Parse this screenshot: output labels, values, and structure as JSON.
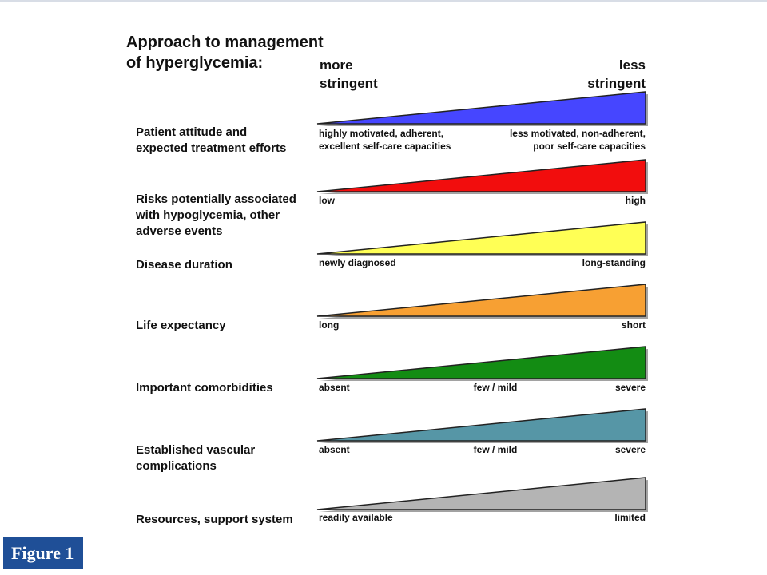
{
  "title_line1": "Approach to management",
  "title_line2": "of hyperglycemia:",
  "more_line1": "more",
  "more_line2": "stringent",
  "less_line1": "less",
  "less_line2": "stringent",
  "rows": [
    {
      "label_lines": [
        "Patient attitude and",
        "expected treatment efforts"
      ],
      "color": "#4646ff",
      "left_lines": [
        "highly motivated, adherent,",
        "excellent self-care capacities"
      ],
      "mid": "",
      "right_lines": [
        "less motivated, non-adherent,",
        "poor self-care capacities"
      ]
    },
    {
      "label_lines": [
        "Risks potentially associated",
        "with hypoglycemia, other",
        "adverse events"
      ],
      "color": "#f20d0d",
      "left_lines": [
        "low"
      ],
      "mid": "",
      "right_lines": [
        "high"
      ]
    },
    {
      "label_lines": [
        "Disease duration"
      ],
      "color": "#ffff55",
      "left_lines": [
        "newly diagnosed"
      ],
      "mid": "",
      "right_lines": [
        "long-standing"
      ]
    },
    {
      "label_lines": [
        "Life expectancy"
      ],
      "color": "#f7a033",
      "left_lines": [
        "long"
      ],
      "mid": "",
      "right_lines": [
        "short"
      ]
    },
    {
      "label_lines": [
        "Important comorbidities"
      ],
      "color": "#138c13",
      "left_lines": [
        "absent"
      ],
      "mid": "few / mild",
      "right_lines": [
        "severe"
      ]
    },
    {
      "label_lines": [
        "Established vascular",
        "complications"
      ],
      "color": "#5696a6",
      "left_lines": [
        "absent"
      ],
      "mid": "few / mild",
      "right_lines": [
        "severe"
      ]
    },
    {
      "label_lines": [
        "Resources, support system"
      ],
      "color": "#b4b4b4",
      "left_lines": [
        "readily available"
      ],
      "mid": "",
      "right_lines": [
        "limited"
      ]
    }
  ],
  "figure_label": "Figure 1"
}
